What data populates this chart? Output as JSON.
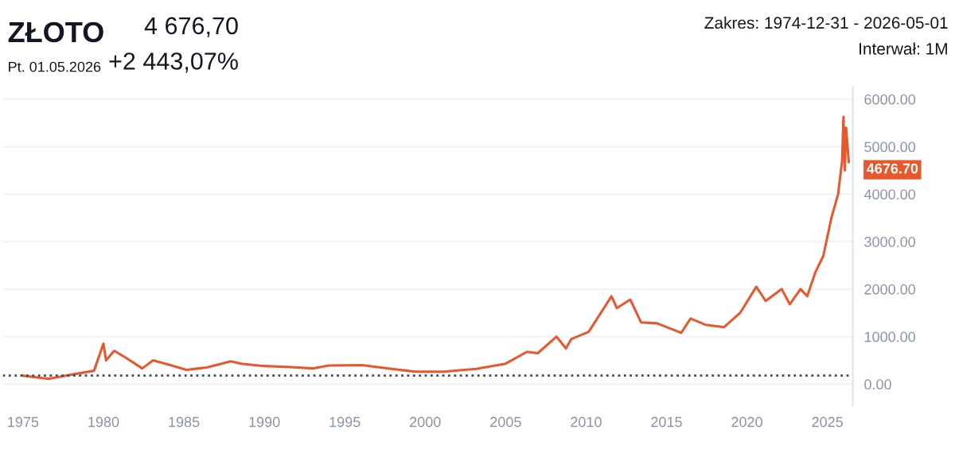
{
  "chart_data": {
    "type": "line",
    "title": "ZŁOTO",
    "subtitle": "Pt. 01.05.2026",
    "annotations": [
      "4 676,70",
      "+2 443,07%",
      "Zakres: 1974-12-31 - 2026-05-01",
      "Interwał: 1M",
      {
        "text": "4676.70",
        "x": "2026-05",
        "y": 4676.7
      }
    ],
    "x": [
      "1974-12",
      "1976-08",
      "1978-01",
      "1979-06",
      "1980-01",
      "1980-03",
      "1980-09",
      "1981-06",
      "1982-06",
      "1983-02",
      "1984-03",
      "1985-03",
      "1986-06",
      "1987-12",
      "1988-08",
      "1990-01",
      "1991-06",
      "1993-01",
      "1994-01",
      "1996-02",
      "1997-06",
      "1999-06",
      "2001-03",
      "2002-06",
      "2003-03",
      "2005-01",
      "2006-05",
      "2007-01",
      "2008-03",
      "2008-10",
      "2009-02",
      "2010-03",
      "2011-08",
      "2011-12",
      "2012-10",
      "2013-06",
      "2014-06",
      "2015-12",
      "2016-07",
      "2017-06",
      "2018-08",
      "2019-08",
      "2020-08",
      "2021-03",
      "2022-03",
      "2022-09",
      "2023-05",
      "2023-10",
      "2024-04",
      "2024-10",
      "2025-04",
      "2025-09",
      "2025-12",
      "2026-01",
      "2026-02",
      "2026-03",
      "2026-05"
    ],
    "series": [
      {
        "color": "#e8582c",
        "values": [
          180,
          110,
          200,
          280,
          850,
          500,
          700,
          550,
          330,
          500,
          400,
          300,
          350,
          480,
          430,
          380,
          360,
          330,
          390,
          400,
          340,
          260,
          260,
          300,
          320,
          430,
          680,
          650,
          1000,
          750,
          950,
          1100,
          1850,
          1600,
          1780,
          1300,
          1280,
          1080,
          1380,
          1250,
          1200,
          1500,
          2050,
          1750,
          2000,
          1680,
          2000,
          1850,
          2350,
          2700,
          3500,
          4000,
          4700,
          5630,
          4500,
          5400,
          4676.7
        ]
      }
    ],
    "xlim": [
      "1973-10",
      "2026-08"
    ],
    "xticks": [
      {
        "value": "1975",
        "label": "1975"
      },
      {
        "value": "1980",
        "label": "1980"
      },
      {
        "value": "1985",
        "label": "1985"
      },
      {
        "value": "1990",
        "label": "1990"
      },
      {
        "value": "1995",
        "label": "1995"
      },
      {
        "value": "2000",
        "label": "2000"
      },
      {
        "value": "2005",
        "label": "2005"
      },
      {
        "value": "2010",
        "label": "2010"
      },
      {
        "value": "2015",
        "label": "2015"
      },
      {
        "value": "2020",
        "label": "2020"
      },
      {
        "value": "2025",
        "label": "2025"
      }
    ],
    "ylim": [
      -450,
      6250
    ],
    "yticks": [
      {
        "value": 0,
        "label": "0.00"
      },
      {
        "value": 1000,
        "label": "1000.00"
      },
      {
        "value": 2000,
        "label": "2000.00"
      },
      {
        "value": 3000,
        "label": "3000.00"
      },
      {
        "value": 4000,
        "label": "4000.00"
      },
      {
        "value": 5000,
        "label": "5000.00"
      },
      {
        "value": 6000,
        "label": "6000.00"
      }
    ],
    "ref_lines": [
      {
        "axis": "y",
        "value": 180,
        "label": null,
        "color": "#3c4a5a",
        "line_style": "dotted"
      }
    ],
    "grid": "y",
    "legend": false,
    "marker": "none",
    "line_style": "solid"
  }
}
